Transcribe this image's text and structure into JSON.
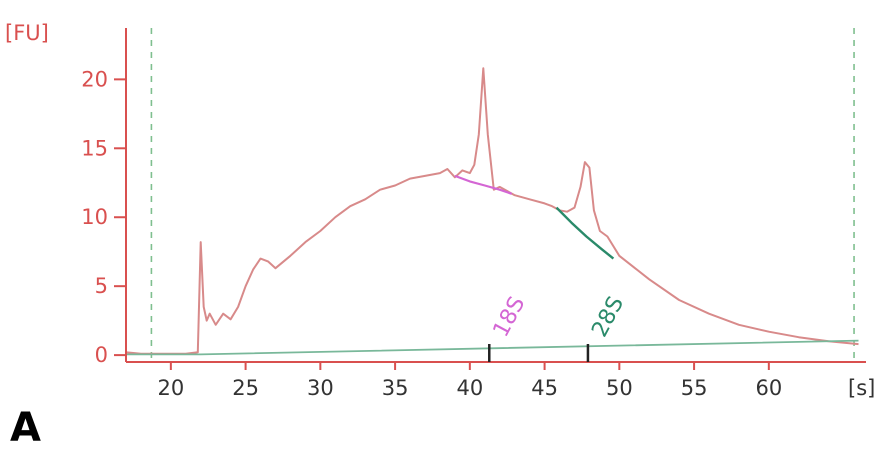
{
  "panel_label": "A",
  "colors": {
    "axis": "#d9504f",
    "trace": "#d88a8a",
    "baseline": "#79b89a",
    "marker_18s": "#d466d4",
    "marker_28s": "#2a8a6a",
    "dashed_guides": "#7fbf8f",
    "tick_text": "#d9504f",
    "xtick_text": "#333333"
  },
  "chart_data": {
    "type": "line",
    "ylabel": "[FU]",
    "xlabel": "[s]",
    "xlim": [
      17,
      66.5
    ],
    "ylim": [
      -0.5,
      23
    ],
    "xticks": [
      20,
      25,
      30,
      35,
      40,
      45,
      50,
      55,
      60
    ],
    "yticks": [
      0,
      5,
      10,
      15,
      20
    ],
    "vertical_guides": [
      18.7,
      65.7
    ],
    "peak_markers": [
      {
        "label": "18S",
        "x": 41.3,
        "color_key": "marker_18s"
      },
      {
        "label": "28S",
        "x": 47.9,
        "color_key": "marker_28s"
      }
    ],
    "series": [
      {
        "color_key": "trace",
        "x": [
          17,
          18,
          19,
          20,
          21,
          21.8,
          22.0,
          22.2,
          22.4,
          22.6,
          23,
          23.5,
          24,
          24.5,
          25,
          25.5,
          26,
          26.5,
          27,
          28,
          29,
          30,
          31,
          32,
          33,
          34,
          35,
          36,
          37,
          38,
          38.5,
          39,
          39.5,
          40,
          40.3,
          40.6,
          40.9,
          41.2,
          41.6,
          42,
          43,
          44,
          45,
          45.5,
          46,
          46.5,
          47,
          47.4,
          47.7,
          48.0,
          48.3,
          48.7,
          49.2,
          50,
          52,
          54,
          56,
          58,
          60,
          62,
          64,
          66
        ],
        "y": [
          0.2,
          0.1,
          0.1,
          0.1,
          0.1,
          0.2,
          8.2,
          3.5,
          2.5,
          3.0,
          2.2,
          3.0,
          2.6,
          3.5,
          5.0,
          6.2,
          7.0,
          6.8,
          6.3,
          7.2,
          8.2,
          9.0,
          10.0,
          10.8,
          11.3,
          12.0,
          12.3,
          12.8,
          13.0,
          13.2,
          13.5,
          12.9,
          13.4,
          13.2,
          13.8,
          16.0,
          20.8,
          16.0,
          12.0,
          12.2,
          11.6,
          11.3,
          11.0,
          10.8,
          10.5,
          10.4,
          10.7,
          12.2,
          14.0,
          13.6,
          10.5,
          9.0,
          8.6,
          7.2,
          5.5,
          4.0,
          3.0,
          2.2,
          1.7,
          1.3,
          1.0,
          0.8
        ]
      },
      {
        "color_key": "baseline",
        "x": [
          17,
          22,
          66
        ],
        "y": [
          0.05,
          0.05,
          1.05
        ]
      },
      {
        "color_key": "marker_18s",
        "x": [
          39.0,
          40.0,
          41.0,
          42.0,
          42.8
        ],
        "y": [
          13.0,
          12.6,
          12.3,
          12.0,
          11.7
        ]
      },
      {
        "color_key": "marker_28s",
        "x": [
          45.8,
          46.8,
          47.8,
          48.8,
          49.6
        ],
        "y": [
          10.7,
          9.6,
          8.6,
          7.7,
          7.0
        ]
      }
    ]
  }
}
